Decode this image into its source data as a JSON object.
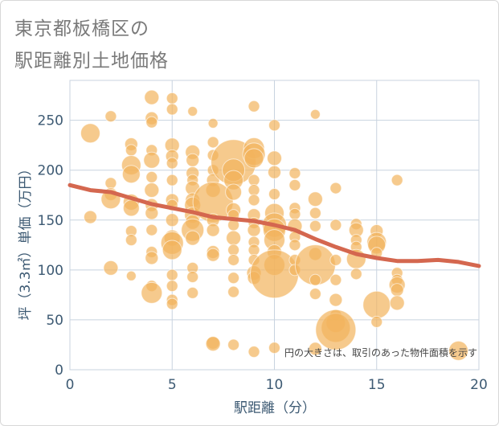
{
  "title_lines": [
    "東京都板橋区の",
    "駅距離別土地価格"
  ],
  "chart_data": {
    "type": "scatter",
    "xlabel": "駅距離（分）",
    "ylabel": "坪（3.3㎡）単価（万円）",
    "xlim": [
      0,
      20
    ],
    "ylim": [
      0,
      290
    ],
    "xticks": [
      0,
      5,
      10,
      15,
      20
    ],
    "yticks": [
      0,
      50,
      100,
      150,
      200,
      250
    ],
    "note": "円の大きさは、取引のあった物件面積を示す",
    "colors": {
      "bubble": "#f2b45c",
      "trend": "#d4674f",
      "grid": "#c8d3df",
      "axis_text": "#3d5a73"
    },
    "points": [
      [
        1,
        237,
        12
      ],
      [
        1,
        153,
        8
      ],
      [
        2,
        254,
        7
      ],
      [
        2,
        187,
        7
      ],
      [
        2,
        176,
        8
      ],
      [
        2,
        171,
        12
      ],
      [
        2,
        102,
        9
      ],
      [
        3,
        226,
        8
      ],
      [
        3,
        220,
        7
      ],
      [
        3,
        205,
        12
      ],
      [
        3,
        196,
        11
      ],
      [
        3,
        168,
        10
      ],
      [
        3,
        162,
        10
      ],
      [
        3,
        139,
        7
      ],
      [
        3,
        130,
        7
      ],
      [
        3,
        94,
        6
      ],
      [
        4,
        273,
        9
      ],
      [
        4,
        252,
        8
      ],
      [
        4,
        248,
        7
      ],
      [
        4,
        220,
        7
      ],
      [
        4,
        210,
        10
      ],
      [
        4,
        193,
        7
      ],
      [
        4,
        180,
        9
      ],
      [
        4,
        165,
        8
      ],
      [
        4,
        157,
        8
      ],
      [
        4,
        140,
        7
      ],
      [
        4,
        118,
        7
      ],
      [
        4,
        112,
        8
      ],
      [
        4,
        84,
        7
      ],
      [
        4,
        77,
        13
      ],
      [
        5,
        272,
        7
      ],
      [
        5,
        261,
        7
      ],
      [
        5,
        225,
        9
      ],
      [
        5,
        214,
        8
      ],
      [
        5,
        207,
        7
      ],
      [
        5,
        190,
        7
      ],
      [
        5,
        170,
        8
      ],
      [
        5,
        165,
        7
      ],
      [
        5,
        150,
        8
      ],
      [
        5,
        132,
        10
      ],
      [
        5,
        127,
        14
      ],
      [
        5,
        120,
        12
      ],
      [
        5,
        95,
        7
      ],
      [
        5,
        84,
        7
      ],
      [
        5,
        70,
        7
      ],
      [
        5,
        66,
        7
      ],
      [
        6,
        259,
        6
      ],
      [
        6,
        218,
        9
      ],
      [
        6,
        210,
        8
      ],
      [
        6,
        197,
        8
      ],
      [
        6,
        190,
        7
      ],
      [
        6,
        182,
        9
      ],
      [
        6,
        170,
        9
      ],
      [
        6,
        165,
        10
      ],
      [
        6,
        155,
        10
      ],
      [
        6,
        148,
        9
      ],
      [
        6,
        140,
        14
      ],
      [
        6,
        132,
        9
      ],
      [
        6,
        102,
        7
      ],
      [
        6,
        93,
        7
      ],
      [
        6,
        77,
        7
      ],
      [
        7,
        247,
        6
      ],
      [
        7,
        228,
        7
      ],
      [
        7,
        215,
        7
      ],
      [
        7,
        200,
        7
      ],
      [
        7,
        190,
        8
      ],
      [
        7,
        180,
        9
      ],
      [
        7,
        168,
        25
      ],
      [
        7,
        150,
        8
      ],
      [
        7,
        140,
        8
      ],
      [
        7,
        118,
        8
      ],
      [
        7,
        115,
        8
      ],
      [
        7,
        27,
        8
      ],
      [
        7,
        26,
        9
      ],
      [
        8,
        208,
        28
      ],
      [
        8,
        200,
        14
      ],
      [
        8,
        190,
        12
      ],
      [
        8,
        178,
        10
      ],
      [
        8,
        160,
        9
      ],
      [
        8,
        155,
        7
      ],
      [
        8,
        145,
        7
      ],
      [
        8,
        132,
        9
      ],
      [
        8,
        120,
        7
      ],
      [
        8,
        110,
        7
      ],
      [
        8,
        92,
        7
      ],
      [
        8,
        78,
        7
      ],
      [
        8,
        25,
        7
      ],
      [
        9,
        264,
        7
      ],
      [
        9,
        222,
        13
      ],
      [
        9,
        216,
        14
      ],
      [
        9,
        212,
        12
      ],
      [
        9,
        190,
        7
      ],
      [
        9,
        180,
        7
      ],
      [
        9,
        170,
        7
      ],
      [
        9,
        155,
        8
      ],
      [
        9,
        147,
        7
      ],
      [
        9,
        140,
        8
      ],
      [
        9,
        128,
        7
      ],
      [
        9,
        120,
        7
      ],
      [
        9,
        110,
        7
      ],
      [
        9,
        97,
        9
      ],
      [
        9,
        92,
        8
      ],
      [
        9,
        18,
        7
      ],
      [
        10,
        245,
        7
      ],
      [
        10,
        212,
        9
      ],
      [
        10,
        198,
        8
      ],
      [
        10,
        176,
        7
      ],
      [
        10,
        157,
        12
      ],
      [
        10,
        145,
        15
      ],
      [
        10,
        140,
        14
      ],
      [
        10,
        130,
        13
      ],
      [
        10,
        118,
        9
      ],
      [
        10,
        105,
        13
      ],
      [
        10,
        96,
        30
      ],
      [
        10,
        22,
        7
      ],
      [
        11,
        197,
        7
      ],
      [
        11,
        185,
        7
      ],
      [
        11,
        162,
        7
      ],
      [
        11,
        156,
        7
      ],
      [
        11,
        144,
        9
      ],
      [
        11,
        133,
        7
      ],
      [
        11,
        125,
        7
      ],
      [
        11,
        110,
        7
      ],
      [
        11,
        100,
        7
      ],
      [
        12,
        256,
        6
      ],
      [
        12,
        171,
        9
      ],
      [
        12,
        157,
        7
      ],
      [
        12,
        144,
        7
      ],
      [
        12,
        116,
        8
      ],
      [
        12,
        105,
        25
      ],
      [
        12,
        90,
        7
      ],
      [
        12,
        76,
        7
      ],
      [
        12,
        21,
        8
      ],
      [
        13,
        182,
        7
      ],
      [
        13,
        145,
        7
      ],
      [
        13,
        110,
        7
      ],
      [
        13,
        90,
        7
      ],
      [
        13,
        70,
        8
      ],
      [
        13,
        55,
        7
      ],
      [
        13,
        47,
        12
      ],
      [
        13,
        42,
        18
      ],
      [
        13,
        40,
        25
      ],
      [
        14,
        146,
        7
      ],
      [
        14,
        140,
        9
      ],
      [
        14,
        130,
        7
      ],
      [
        14,
        123,
        7
      ],
      [
        14,
        111,
        12
      ],
      [
        14,
        96,
        7
      ],
      [
        15,
        139,
        8
      ],
      [
        15,
        128,
        12
      ],
      [
        15,
        125,
        11
      ],
      [
        15,
        117,
        7
      ],
      [
        15,
        65,
        17
      ],
      [
        15,
        48,
        7
      ],
      [
        16,
        190,
        7
      ],
      [
        16,
        97,
        7
      ],
      [
        16,
        90,
        7
      ],
      [
        16,
        85,
        10
      ],
      [
        16,
        80,
        8
      ],
      [
        16,
        67,
        9
      ],
      [
        19,
        19,
        12
      ]
    ],
    "trend": [
      [
        0,
        185
      ],
      [
        1,
        180
      ],
      [
        2,
        178
      ],
      [
        3,
        172
      ],
      [
        4,
        166
      ],
      [
        5,
        162
      ],
      [
        6,
        158
      ],
      [
        7,
        153
      ],
      [
        8,
        151
      ],
      [
        9,
        149
      ],
      [
        10,
        145
      ],
      [
        11,
        140
      ],
      [
        12,
        131
      ],
      [
        13,
        123
      ],
      [
        14,
        116
      ],
      [
        15,
        112
      ],
      [
        16,
        109
      ],
      [
        17,
        109
      ],
      [
        18,
        110
      ],
      [
        19,
        108
      ],
      [
        20,
        104
      ]
    ]
  }
}
